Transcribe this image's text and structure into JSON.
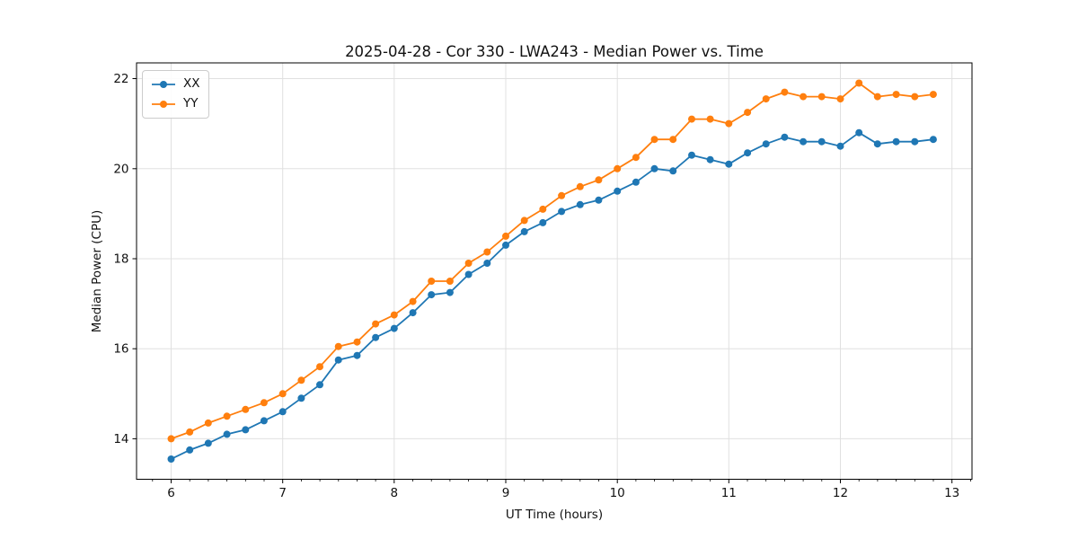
{
  "chart_data": {
    "type": "line",
    "title": "2025-04-28 - Cor 330 - LWA243 - Median Power vs. Time",
    "xlabel": "UT Time (hours)",
    "ylabel": "Median Power (CPU)",
    "xlim": [
      5.69,
      13.18
    ],
    "ylim": [
      13.1,
      22.35
    ],
    "x_ticks": [
      6,
      7,
      8,
      9,
      10,
      11,
      12,
      13
    ],
    "y_ticks": [
      14,
      16,
      18,
      20,
      22
    ],
    "x_minor_tick_step_hours": 0.16667,
    "grid": true,
    "legend_position": "upper left",
    "x": [
      6.0,
      6.167,
      6.333,
      6.5,
      6.667,
      6.833,
      7.0,
      7.167,
      7.333,
      7.5,
      7.667,
      7.833,
      8.0,
      8.167,
      8.333,
      8.5,
      8.667,
      8.833,
      9.0,
      9.167,
      9.333,
      9.5,
      9.667,
      9.833,
      10.0,
      10.167,
      10.333,
      10.5,
      10.667,
      10.833,
      11.0,
      11.167,
      11.333,
      11.5,
      11.667,
      11.833,
      12.0,
      12.167,
      12.333,
      12.5,
      12.667,
      12.833
    ],
    "series": [
      {
        "name": "XX",
        "color": "#1f77b4",
        "values": [
          13.55,
          13.75,
          13.9,
          14.1,
          14.2,
          14.4,
          14.6,
          14.9,
          15.2,
          15.75,
          15.85,
          16.25,
          16.45,
          16.8,
          17.2,
          17.25,
          17.65,
          17.9,
          18.3,
          18.6,
          18.8,
          19.05,
          19.2,
          19.3,
          19.5,
          19.7,
          20.0,
          19.95,
          20.3,
          20.2,
          20.1,
          20.35,
          20.55,
          20.7,
          20.6,
          20.6,
          20.5,
          20.8,
          20.55,
          20.6,
          20.6,
          20.65
        ]
      },
      {
        "name": "YY",
        "color": "#ff7f0e",
        "values": [
          14.0,
          14.15,
          14.35,
          14.5,
          14.65,
          14.8,
          15.0,
          15.3,
          15.6,
          16.05,
          16.15,
          16.55,
          16.75,
          17.05,
          17.5,
          17.5,
          17.9,
          18.15,
          18.5,
          18.85,
          19.1,
          19.4,
          19.6,
          19.75,
          20.0,
          20.25,
          20.65,
          20.65,
          21.1,
          21.1,
          21.0,
          21.25,
          21.55,
          21.7,
          21.6,
          21.6,
          21.55,
          21.9,
          21.6,
          21.65,
          21.6,
          21.65
        ]
      }
    ]
  }
}
